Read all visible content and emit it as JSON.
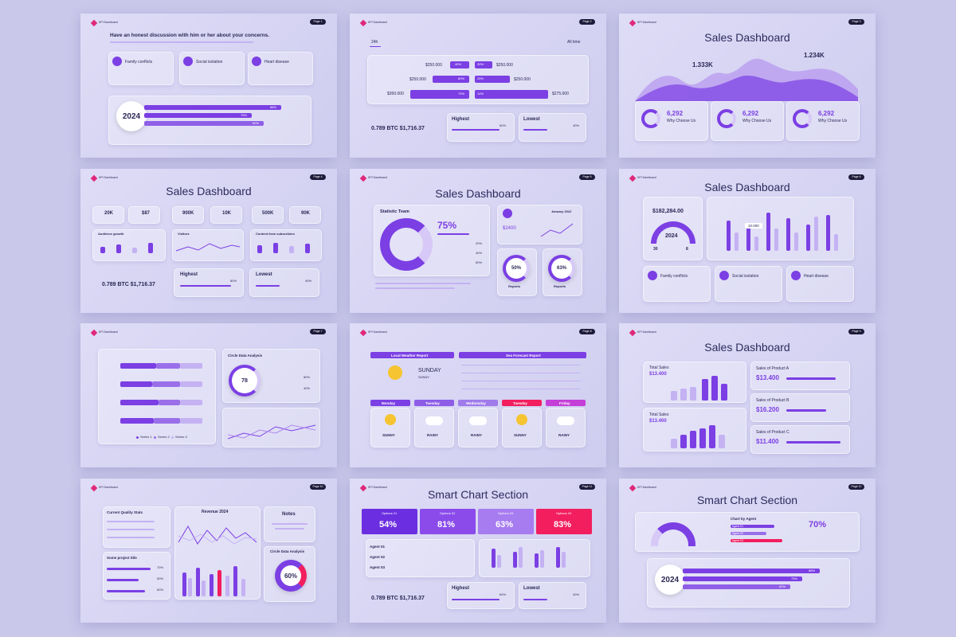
{
  "slides": [
    {
      "brand": "KPI Dashboard",
      "page": "Page 1",
      "heading": "Have an honest discussion with him or her about your concerns.",
      "items": [
        "Family conflicts",
        "Social isolation",
        "Heart disease"
      ],
      "year": "2024",
      "bars": [
        "88%",
        "75%",
        "60%"
      ]
    },
    {
      "brand": "KPI Dashboard",
      "page": "Page 2",
      "tabs": [
        "24h",
        "All time"
      ],
      "left_values": [
        "$250.000",
        "$250.000",
        "$350.000"
      ],
      "left_pcts": [
        "40%",
        "60%",
        "72%"
      ],
      "right_pcts": [
        "30%",
        "25%",
        "14%"
      ],
      "right_values": [
        "$250.000",
        "$250.000",
        "$275.000"
      ],
      "btc": "0.789 BTC $1,716.37",
      "highest": "Highest",
      "highest_pct": "60%",
      "lowest": "Lowest",
      "lowest_pct": "40%"
    },
    {
      "brand": "KPI Dashboard",
      "page": "Page 3",
      "title": "Sales Dashboard",
      "peaks": [
        "1.333K",
        "1.234K"
      ],
      "cards": [
        {
          "value": "6,292",
          "label": "Why Choose Us"
        },
        {
          "value": "6,292",
          "label": "Why Choose Us"
        },
        {
          "value": "6,292",
          "label": "Why Choose Us"
        }
      ]
    },
    {
      "brand": "KPI Dashboard",
      "page": "Page 4",
      "title": "Sales Dashboard",
      "stats": [
        "20K",
        "$87",
        "900K",
        "10K",
        "500K",
        "90K"
      ],
      "charts": [
        "Audience growth",
        "Visitors",
        "Content from subscribers"
      ],
      "btc": "0.789 BTC $1,716.37",
      "highest": "Highest",
      "highest_pct": "80%",
      "lowest": "Lowest",
      "lowest_pct": "40%"
    },
    {
      "brand": "KPI Dashboard",
      "page": "Page 5",
      "title": "Sales Dashboard",
      "team": "Statistic Team",
      "team_pct": "75%",
      "team_rows": [
        "20%",
        "40%",
        "60%"
      ],
      "month": "January 2022",
      "amount": "$2400",
      "rings": [
        {
          "value": "50%",
          "label": "Reports"
        },
        {
          "value": "63%",
          "label": "Reports"
        }
      ]
    },
    {
      "brand": "KPI Dashboard",
      "page": "Page 6",
      "title": "Sales Dashboard",
      "amount": "$182,284.00",
      "year": "2024",
      "gauge": [
        "30",
        "8"
      ],
      "tooltip": "10.000",
      "items": [
        "Family conflicts",
        "Social isolation",
        "Heart disease"
      ]
    },
    {
      "brand": "KPI Dashboard",
      "page": "Page 7",
      "circle_title": "Circle Data Analysis",
      "circle_value": "78",
      "circle_pcts": [
        "80%",
        "40%"
      ],
      "legend": [
        "Series 1",
        "Series 2",
        "Series 3"
      ]
    },
    {
      "brand": "KPI Dashboard",
      "page": "Page 8",
      "local": "Local Weather Report",
      "sea": "Sea Forecast Report",
      "today": "SUNDAY",
      "today_cond": "SUNNY",
      "days": [
        {
          "day": "Monday",
          "cond": "SUNNY"
        },
        {
          "day": "Tuesday",
          "cond": "RAINY"
        },
        {
          "day": "Wednesday",
          "cond": "RAINY"
        },
        {
          "day": "Tuesday",
          "cond": "SUNNY"
        },
        {
          "day": "Friday",
          "cond": "RAINY"
        }
      ]
    },
    {
      "brand": "KPI Dashboard",
      "page": "Page 9",
      "title": "Sales Dashboard",
      "totals": [
        {
          "label": "Total Sales",
          "value": "$13.400"
        },
        {
          "label": "Total Sales",
          "value": "$13.400"
        }
      ],
      "products": [
        {
          "label": "Sales of Product A",
          "value": "$13.400"
        },
        {
          "label": "Sales of Product B",
          "value": "$16.200"
        },
        {
          "label": "Sales of Product C",
          "value": "$11.400"
        }
      ]
    },
    {
      "brand": "KPI Dashboard",
      "page": "Page 10",
      "quality": "Current Quality Stats",
      "revenue": "Revenue 2024",
      "notes": "Notes",
      "circle_title": "Circle Data Analysis",
      "circle_value": "60%",
      "project": "Some project title",
      "project_pcts": [
        "70%",
        "50%",
        "60%"
      ]
    },
    {
      "brand": "KPI Dashboard",
      "page": "Page 11",
      "title": "Smart Chart Section",
      "options": [
        {
          "label": "Options 01",
          "value": "54%"
        },
        {
          "label": "Options 02",
          "value": "81%"
        },
        {
          "label": "Options 03",
          "value": "63%"
        },
        {
          "label": "Options 04",
          "value": "83%"
        }
      ],
      "agents": [
        "Agent 01",
        "Agent 02",
        "Agent 03"
      ],
      "btc": "0.789 BTC $1,716.37",
      "highest": "Highest",
      "highest_pct": "60%",
      "lowest": "Lowest",
      "lowest_pct": "40%"
    },
    {
      "brand": "KPI Dashboard",
      "page": "Page 12",
      "title": "Smart Chart Section",
      "chart_title": "Chart by Agent",
      "agents": [
        "Agent 01",
        "Agent 02",
        "Agent 03"
      ],
      "agent_pct": "70%",
      "year": "2024",
      "bars": [
        "88%",
        "75%",
        "60%"
      ]
    }
  ]
}
